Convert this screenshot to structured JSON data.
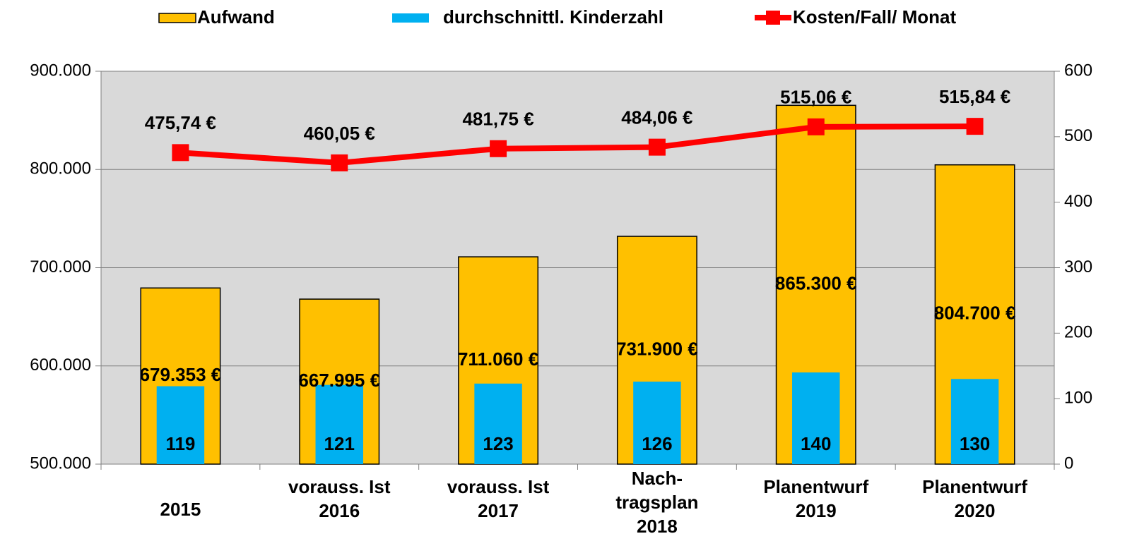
{
  "chart_data": {
    "type": "bar",
    "categories": [
      "2015",
      "vorauss. Ist\n2016",
      "vorauss. Ist\n2017",
      "Nach-\ntragsplan\n2018",
      "Planentwurf\n2019",
      "Planentwurf\n2020"
    ],
    "series": [
      {
        "name": "Aufwand",
        "type": "bar",
        "color": "#ffc000",
        "values": [
          679353,
          667995,
          711060,
          731900,
          865300,
          804700
        ],
        "value_labels": [
          "679.353 €",
          "667.995 €",
          "711.060 €",
          "731.900 €",
          "865.300 €",
          "804.700 €"
        ]
      },
      {
        "name": "durchschnittl. Kinderzahl",
        "type": "bar",
        "axis": "y2",
        "color": "#00b0f0",
        "values": [
          119,
          121,
          123,
          126,
          140,
          130
        ]
      },
      {
        "name": "Kosten/Fall/ Monat",
        "type": "line",
        "axis": "y2",
        "color": "#ff0000",
        "values": [
          475.74,
          460.05,
          481.75,
          484.06,
          515.06,
          515.84
        ],
        "value_labels": [
          "475,74 €",
          "460,05 €",
          "481,75 €",
          "484,06 €",
          "515,06 €",
          "515,84 €"
        ]
      }
    ],
    "ylim": [
      500000,
      900000
    ],
    "yticks": [
      {
        "value": 500000,
        "label": "500.000"
      },
      {
        "value": 600000,
        "label": "600.000"
      },
      {
        "value": 700000,
        "label": "700.000"
      },
      {
        "value": 800000,
        "label": "800.000"
      },
      {
        "value": 900000,
        "label": "900.000"
      }
    ],
    "y2lim": [
      0,
      600
    ],
    "y2ticks": [
      0,
      100,
      200,
      300,
      400,
      500,
      600
    ],
    "grid": true,
    "legend": "top"
  }
}
